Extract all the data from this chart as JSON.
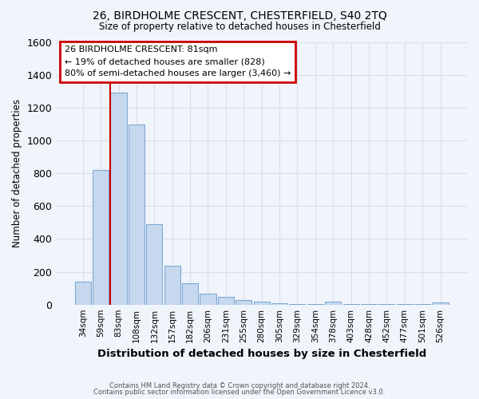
{
  "title": "26, BIRDHOLME CRESCENT, CHESTERFIELD, S40 2TQ",
  "subtitle": "Size of property relative to detached houses in Chesterfield",
  "xlabel": "Distribution of detached houses by size in Chesterfield",
  "ylabel": "Number of detached properties",
  "footnote1": "Contains HM Land Registry data © Crown copyright and database right 2024.",
  "footnote2": "Contains public sector information licensed under the Open Government Licence v3.0.",
  "annotation_title": "26 BIRDHOLME CRESCENT: 81sqm",
  "annotation_line1": "← 19% of detached houses are smaller (828)",
  "annotation_line2": "80% of semi-detached houses are larger (3,460) →",
  "bar_labels": [
    "34sqm",
    "59sqm",
    "83sqm",
    "108sqm",
    "132sqm",
    "157sqm",
    "182sqm",
    "206sqm",
    "231sqm",
    "255sqm",
    "280sqm",
    "305sqm",
    "329sqm",
    "354sqm",
    "378sqm",
    "403sqm",
    "428sqm",
    "452sqm",
    "477sqm",
    "501sqm",
    "526sqm"
  ],
  "bar_heights": [
    140,
    820,
    1290,
    1095,
    490,
    235,
    130,
    65,
    45,
    28,
    20,
    8,
    5,
    2,
    18,
    2,
    2,
    2,
    2,
    2,
    15
  ],
  "bar_color": "#c5d8ee",
  "bar_edge_color": "#6699cc",
  "marker_color": "#cc0000",
  "background_color": "#f0f4fb",
  "grid_color": "#ddddee",
  "ylim_max": 1600,
  "yticks": [
    0,
    200,
    400,
    600,
    800,
    1000,
    1200,
    1400,
    1600
  ],
  "marker_bar_index": 2,
  "bar_width": 0.9
}
